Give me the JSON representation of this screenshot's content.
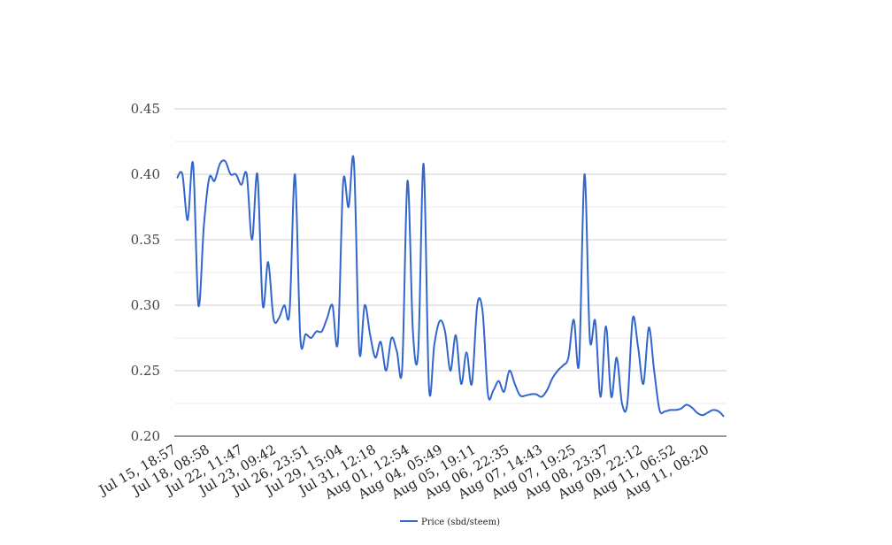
{
  "chart_data": {
    "type": "line",
    "title": "",
    "xlabel": "",
    "ylabel": "",
    "ylim": [
      0.2,
      0.45
    ],
    "y_ticks": [
      "0.20",
      "0.25",
      "0.30",
      "0.35",
      "0.40",
      "0.45"
    ],
    "y_tick_values": [
      0.2,
      0.25,
      0.3,
      0.35,
      0.4,
      0.45
    ],
    "x_tick_labels": [
      "Jul 15, 18:57",
      "Jul 18, 08:58",
      "Jul 22, 11:47",
      "Jul 23, 09:42",
      "Jul 26, 23:51",
      "Jul 29, 15:04",
      "Jul 31, 12:18",
      "Aug 01, 12:54",
      "Aug 04, 05:49",
      "Aug 05, 19:11",
      "Aug 06, 22:35",
      "Aug 07, 14:43",
      "Aug 07, 19:25",
      "Aug 08, 23:37",
      "Aug 09, 22:12",
      "Aug 11, 06:52",
      "Aug 11, 08:20"
    ],
    "grid": true,
    "legend_position": "bottom",
    "series": [
      {
        "name": "Price (sbd/steem)",
        "color": "#3366cc",
        "values": [
          0.397,
          0.4,
          0.365,
          0.408,
          0.3,
          0.36,
          0.397,
          0.395,
          0.408,
          0.41,
          0.4,
          0.4,
          0.392,
          0.4,
          0.35,
          0.4,
          0.3,
          0.333,
          0.29,
          0.29,
          0.3,
          0.295,
          0.4,
          0.275,
          0.278,
          0.275,
          0.28,
          0.28,
          0.29,
          0.3,
          0.272,
          0.394,
          0.375,
          0.41,
          0.265,
          0.3,
          0.278,
          0.26,
          0.272,
          0.25,
          0.275,
          0.265,
          0.252,
          0.395,
          0.28,
          0.265,
          0.408,
          0.237,
          0.27,
          0.288,
          0.28,
          0.25,
          0.277,
          0.24,
          0.264,
          0.24,
          0.3,
          0.295,
          0.232,
          0.235,
          0.242,
          0.234,
          0.25,
          0.24,
          0.231,
          0.231,
          0.232,
          0.232,
          0.23,
          0.235,
          0.244,
          0.25,
          0.254,
          0.26,
          0.289,
          0.256,
          0.4,
          0.275,
          0.288,
          0.23,
          0.284,
          0.23,
          0.26,
          0.225,
          0.225,
          0.29,
          0.268,
          0.24,
          0.283,
          0.25,
          0.22,
          0.219,
          0.22,
          0.22,
          0.221,
          0.224,
          0.222,
          0.218,
          0.216,
          0.218,
          0.22,
          0.219,
          0.215
        ]
      }
    ]
  }
}
